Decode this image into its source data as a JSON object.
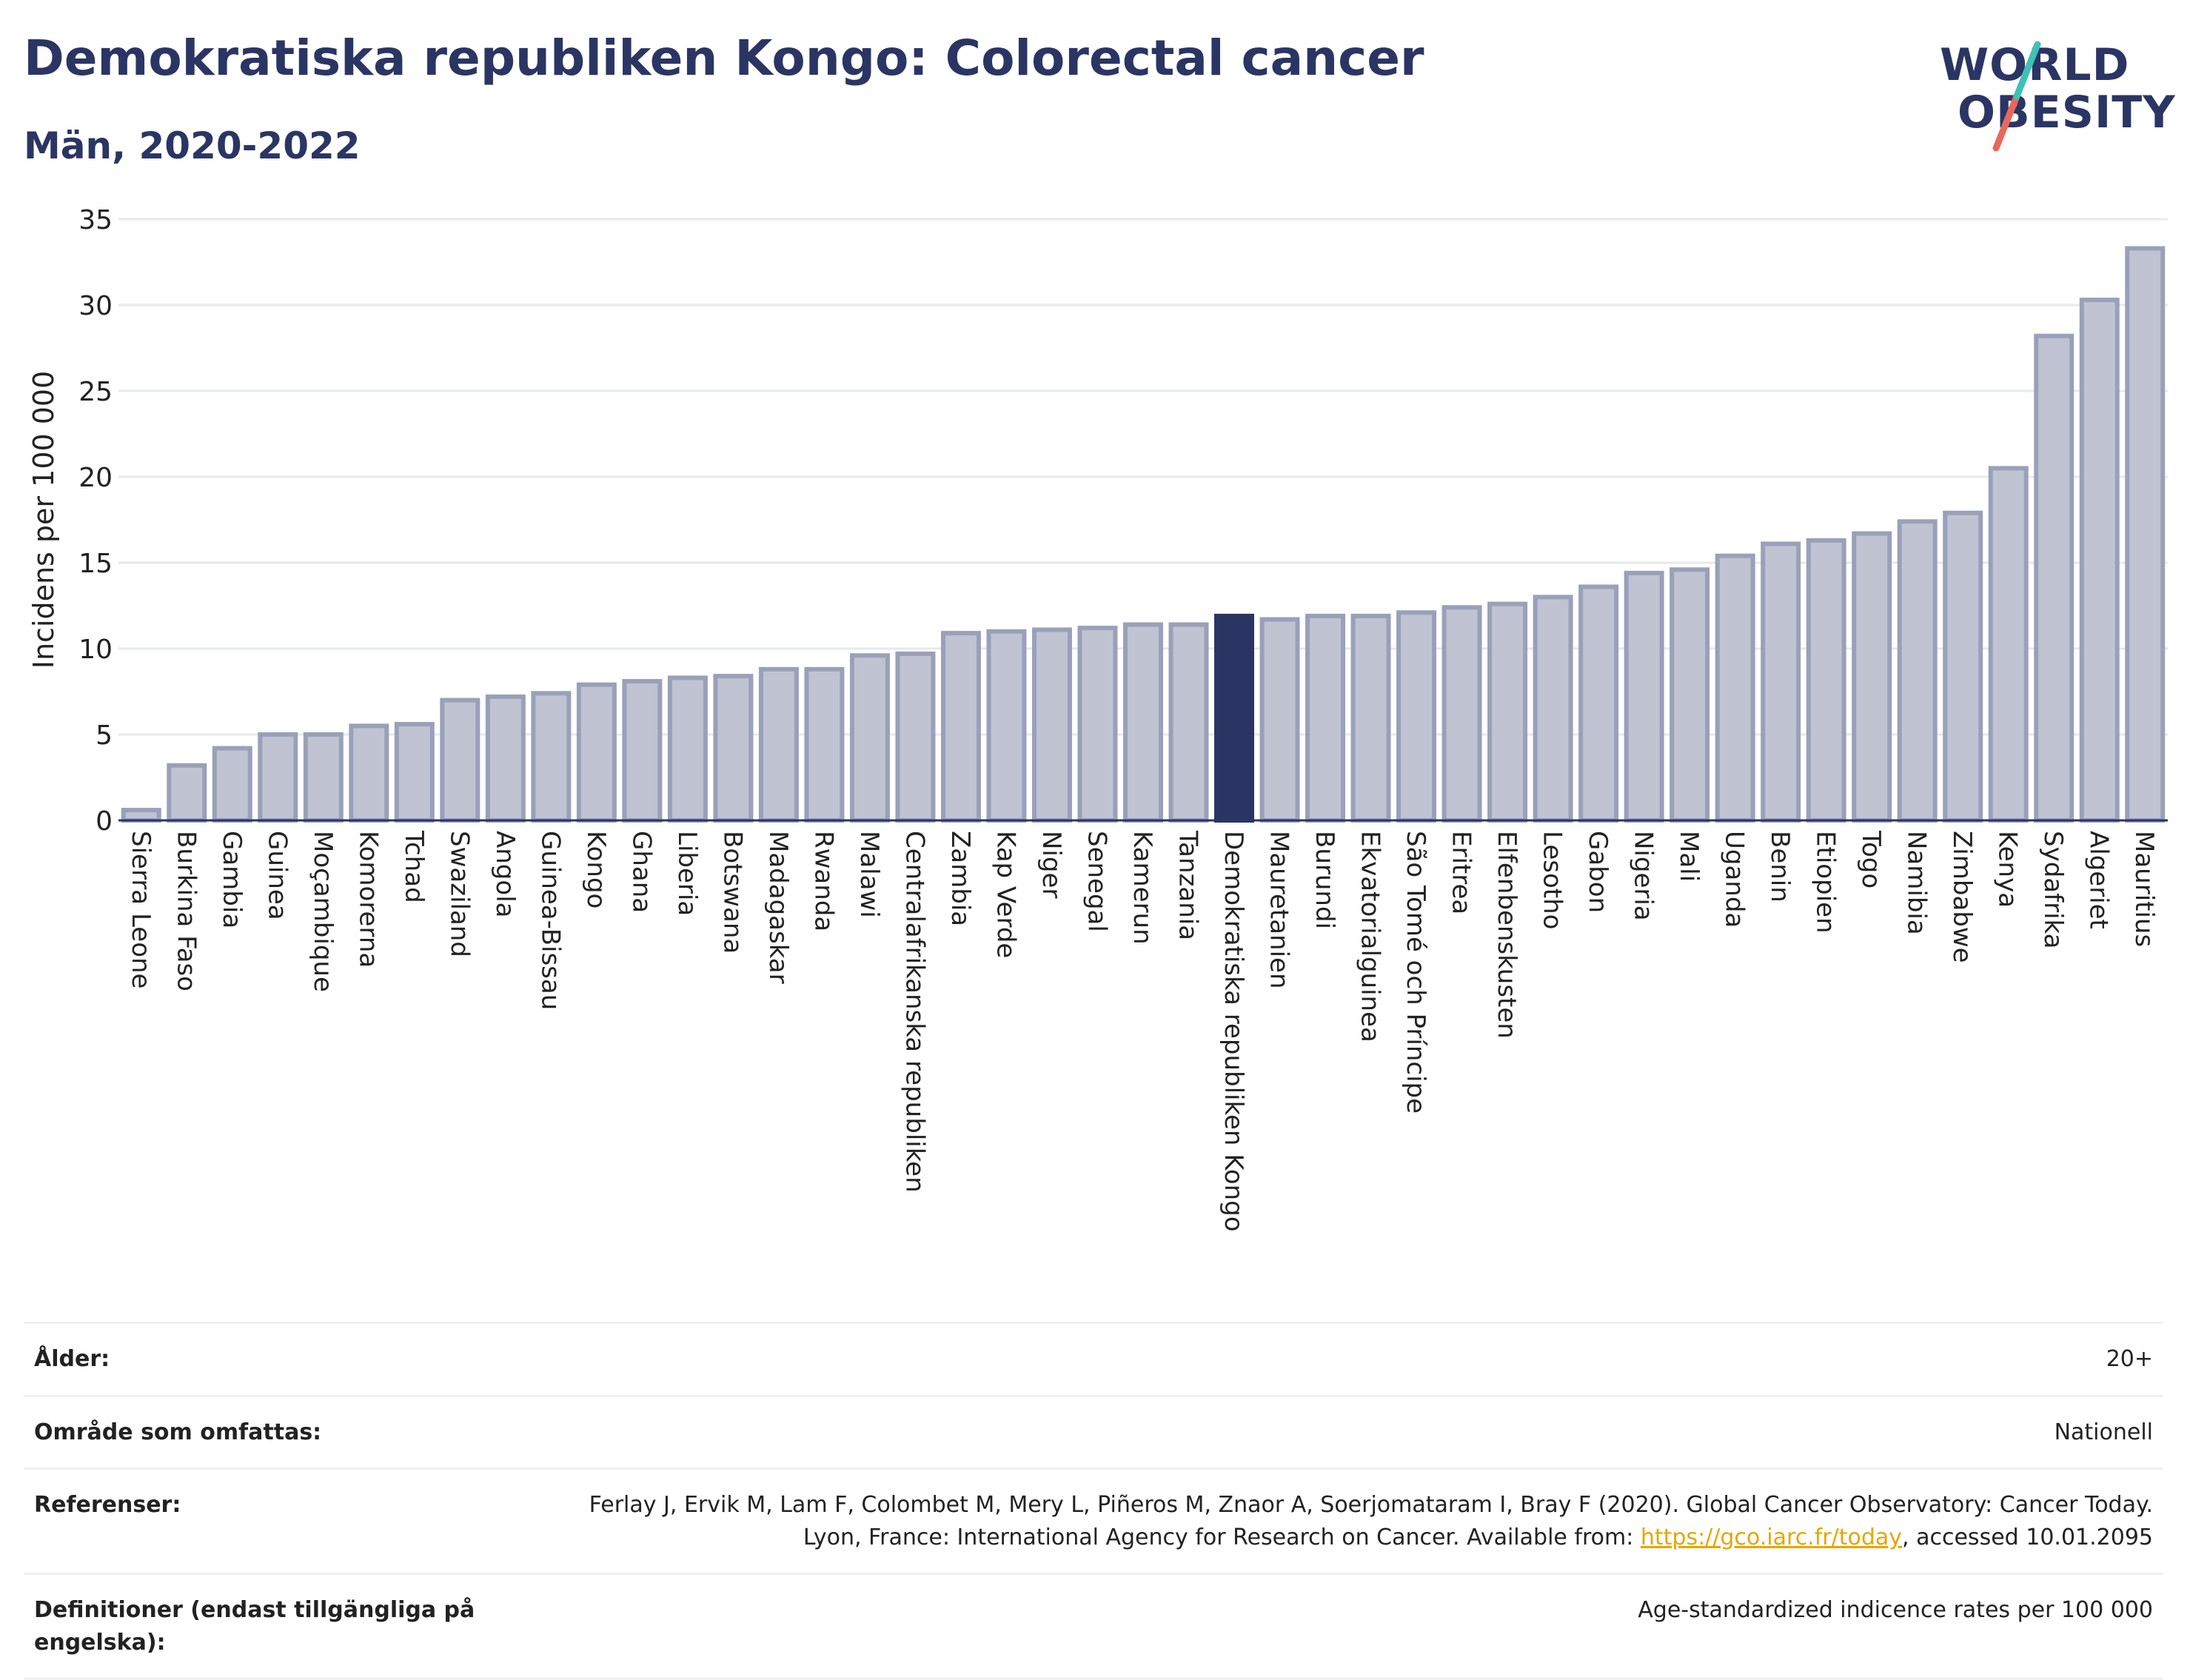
{
  "header": {
    "title": "Demokratiska republiken Kongo: Colorectal cancer",
    "subtitle": "Män, 2020-2022"
  },
  "logo": {
    "line1": "WORLD",
    "line2": "OBESITY",
    "colors": [
      "#2b3564",
      "#3ec1b5",
      "#e8685c"
    ]
  },
  "colors": {
    "bar": "#bfc3d2",
    "bar_edge": "#9aa0b9",
    "highlight": "#2b3564",
    "grid": "#e7e9ef",
    "axis": "#2b3564"
  },
  "chart_data": {
    "type": "bar",
    "ylabel": "Incidens per 100 000",
    "ylim": [
      0,
      35
    ],
    "yticks": [
      0,
      5,
      10,
      15,
      20,
      25,
      30,
      35
    ],
    "grid": true,
    "highlight": "Demokratiska republiken Kongo",
    "categories": [
      "Sierra Leone",
      "Burkina Faso",
      "Gambia",
      "Guinea",
      "Moçambique",
      "Komorerna",
      "Tchad",
      "Swaziland",
      "Angola",
      "Guinea-Bissau",
      "Kongo",
      "Ghana",
      "Liberia",
      "Botswana",
      "Madagaskar",
      "Rwanda",
      "Malawi",
      "Centralafrikanska republiken",
      "Zambia",
      "Kap Verde",
      "Niger",
      "Senegal",
      "Kamerun",
      "Tanzania",
      "Demokratiska republiken Kongo",
      "Mauretanien",
      "Burundi",
      "Ekvatorialguinea",
      "São Tomé och Príncipe",
      "Eritrea",
      "Elfenbenskusten",
      "Lesotho",
      "Gabon",
      "Nigeria",
      "Mali",
      "Uganda",
      "Benin",
      "Etiopien",
      "Togo",
      "Namibia",
      "Zimbabwe",
      "Kenya",
      "Sydafrika",
      "Algeriet",
      "Mauritius"
    ],
    "values": [
      0.6,
      3.2,
      4.2,
      5.0,
      5.0,
      5.5,
      5.6,
      7.0,
      7.2,
      7.4,
      7.9,
      8.1,
      8.3,
      8.4,
      8.8,
      8.8,
      9.6,
      9.7,
      10.9,
      11.0,
      11.1,
      11.2,
      11.4,
      11.4,
      11.9,
      11.7,
      11.9,
      11.9,
      12.1,
      12.4,
      12.6,
      13.0,
      13.6,
      14.4,
      14.6,
      15.4,
      16.1,
      16.3,
      16.7,
      17.4,
      17.9,
      20.5,
      28.2,
      30.3,
      33.3
    ]
  },
  "meta": {
    "age_label": "Ålder:",
    "age_value": "20+",
    "area_label": "Område som omfattas:",
    "area_value": "Nationell",
    "ref_label": "Referenser:",
    "ref_text_1": "Ferlay J, Ervik M, Lam F, Colombet M, Mery L, Piñeros M, Znaor A, Soerjomataram I, Bray F (2020). Global Cancer Observatory: Cancer Today. Lyon, France: International Agency for Research on Cancer. Available from: ",
    "ref_link": "https://gco.iarc.fr/today",
    "ref_text_2": ", accessed 10.01.2095",
    "def_label": "Definitioner (endast tillgängliga på engelska):",
    "def_value": "Age-standardized indicence rates per 100 000"
  }
}
